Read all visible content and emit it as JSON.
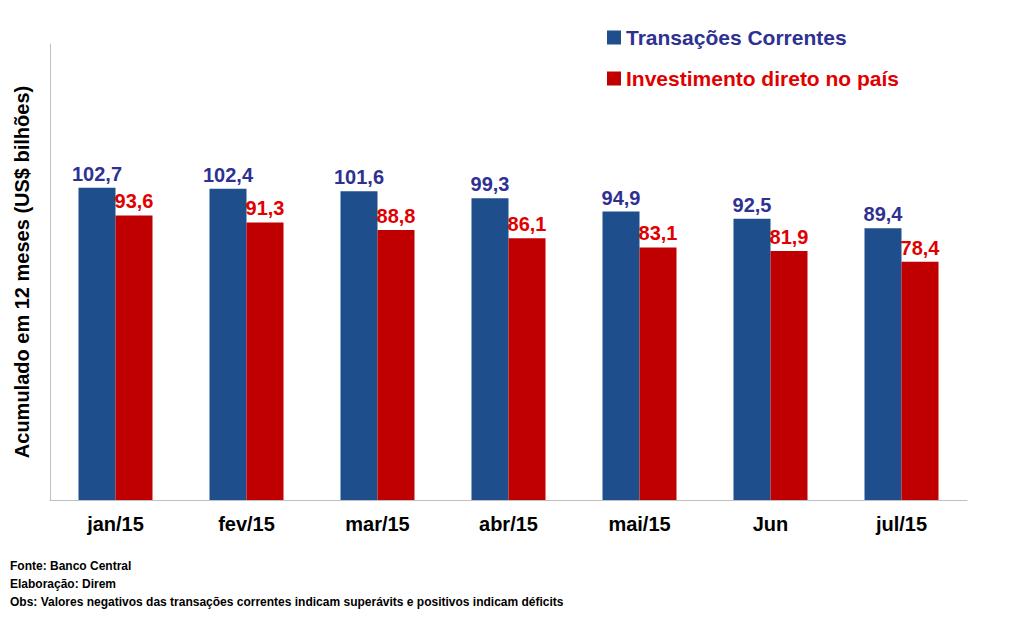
{
  "chart_data": {
    "type": "bar",
    "y_label": "Acumulado em 12 meses (US$ bilhões)",
    "categories": [
      "jan/15",
      "fev/15",
      "mar/15",
      "abr/15",
      "mai/15",
      "Jun",
      "jul/15"
    ],
    "series": [
      {
        "name": "Transações Correntes",
        "color": "#1f4e8c",
        "values": [
          102.7,
          102.4,
          101.6,
          99.3,
          94.9,
          92.5,
          89.4
        ],
        "value_labels": [
          "102,7",
          "102,4",
          "101,6",
          "99,3",
          "94,9",
          "92,5",
          "89,4"
        ]
      },
      {
        "name": "Investimento direto no país",
        "color": "#c00000",
        "values": [
          93.6,
          91.3,
          88.8,
          86.1,
          83.1,
          81.9,
          78.4
        ],
        "value_labels": [
          "93,6",
          "91,3",
          "88,8",
          "86,1",
          "83,1",
          "81,9",
          "78,4"
        ]
      }
    ],
    "ylim": [
      0,
      150
    ],
    "tick_labels": "x",
    "grid": false,
    "legend": "top-right",
    "data_labels": true,
    "annotations": [
      "Fonte: Banco Central",
      "Elaboração: Direm",
      "Obs: Valores negativos das transações correntes indicam superávits e positivos indicam déficits"
    ]
  }
}
